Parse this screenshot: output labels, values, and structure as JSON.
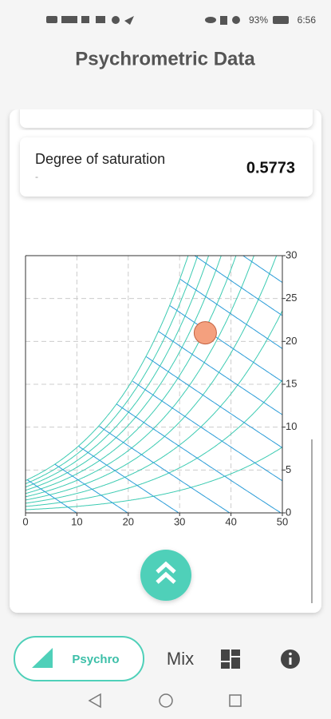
{
  "status": {
    "battery": "93%",
    "time": "6:56"
  },
  "header": {
    "title": "Psychrometric Data"
  },
  "result": {
    "label": "Degree of saturation",
    "sublabel": "-",
    "value": "0.5773"
  },
  "chart_data": {
    "type": "psychrometric",
    "x": [
      35
    ],
    "values": [
      21
    ],
    "color": "#f4a07e",
    "xlim": [
      0,
      50
    ],
    "xticks": [
      0,
      10,
      20,
      30,
      40,
      50
    ],
    "ylim": [
      0,
      30
    ],
    "yticks": [
      0,
      5,
      10,
      15,
      20,
      25,
      30
    ],
    "grid": true,
    "rh_lines": [
      10,
      20,
      30,
      40,
      50,
      60,
      70,
      80,
      90,
      100
    ],
    "rh_color": "#3ccbb2",
    "enthalpy_lines": [
      10,
      20,
      30,
      40,
      50,
      60,
      70,
      80,
      90,
      100,
      110,
      120
    ],
    "enthalpy_color": "#2b9cd8"
  },
  "nav": {
    "items": [
      "Psychro",
      "Mix"
    ]
  }
}
